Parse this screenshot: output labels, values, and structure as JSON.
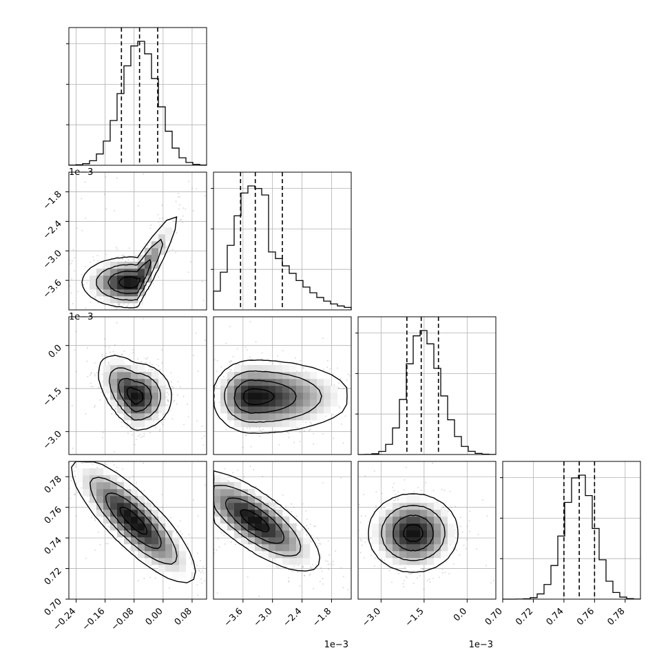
{
  "chart_data": {
    "type": "corner",
    "description_free": true,
    "parameters": [
      {
        "index": 0,
        "range": [
          -0.26,
          0.12
        ],
        "ticks": [
          -0.24,
          -0.16,
          -0.08,
          0.0,
          0.08
        ],
        "tick_labels": [
          "−0.24",
          "−0.16",
          "−0.08",
          "0.00",
          "0.08"
        ],
        "offset_text": "",
        "quantiles": [
          -0.115,
          -0.065,
          -0.015
        ],
        "peak": -0.065,
        "spread": 0.05
      },
      {
        "index": 1,
        "range": [
          -4.2,
          -1.4
        ],
        "ticks": [
          -3.6,
          -3.0,
          -2.4,
          -1.8
        ],
        "tick_labels": [
          "−3.6",
          "−3.0",
          "−2.4",
          "−1.8"
        ],
        "offset_text": "1e−3",
        "quantiles": [
          -3.65,
          -3.35,
          -2.8
        ],
        "peak": -3.45,
        "spread": 0.35
      },
      {
        "index": 2,
        "range": [
          -3.8,
          1.0
        ],
        "ticks": [
          -3.0,
          -1.5,
          0.0
        ],
        "tick_labels": [
          "−3.0",
          "−1.5",
          "0.0"
        ],
        "offset_text": "1e−3",
        "quantiles": [
          -2.1,
          -1.6,
          -1.0
        ],
        "peak": -1.6,
        "spread": 0.5
      },
      {
        "index": 3,
        "range": [
          0.7,
          0.79
        ],
        "ticks": [
          0.7,
          0.72,
          0.74,
          0.76,
          0.78
        ],
        "tick_labels": [
          "0.70",
          "0.72",
          "0.74",
          "0.76",
          "0.78"
        ],
        "offset_text": "",
        "quantiles": [
          0.74,
          0.75,
          0.76
        ],
        "peak": 0.75,
        "spread": 0.01
      }
    ],
    "pairs": [
      {
        "row": 1,
        "col": 0,
        "relation": "curved-positive"
      },
      {
        "row": 2,
        "col": 0,
        "relation": "bent-negative"
      },
      {
        "row": 2,
        "col": 1,
        "relation": "skewed"
      },
      {
        "row": 3,
        "col": 0,
        "relation": "negative"
      },
      {
        "row": 3,
        "col": 1,
        "relation": "negative"
      },
      {
        "row": 3,
        "col": 2,
        "relation": "weak"
      }
    ],
    "grid": true,
    "quantile_lines": "dashed"
  }
}
